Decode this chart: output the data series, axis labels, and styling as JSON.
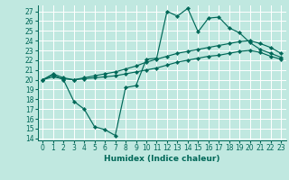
{
  "title": "",
  "xlabel": "Humidex (Indice chaleur)",
  "ylabel": "",
  "bg_color": "#c0e8e0",
  "grid_color": "#ffffff",
  "line_color": "#006858",
  "xlim": [
    -0.5,
    23.5
  ],
  "ylim": [
    13.8,
    27.6
  ],
  "xticks": [
    0,
    1,
    2,
    3,
    4,
    5,
    6,
    7,
    8,
    9,
    10,
    11,
    12,
    13,
    14,
    15,
    16,
    17,
    18,
    19,
    20,
    21,
    22,
    23
  ],
  "yticks": [
    14,
    15,
    16,
    17,
    18,
    19,
    20,
    21,
    22,
    23,
    24,
    25,
    26,
    27
  ],
  "line1_x": [
    0,
    1,
    2,
    3,
    4,
    5,
    6,
    7,
    8,
    9,
    10,
    11,
    12,
    13,
    14,
    15,
    16,
    17,
    18,
    19,
    20,
    21,
    22,
    23
  ],
  "line1_y": [
    20.0,
    20.5,
    20.0,
    17.8,
    17.0,
    15.2,
    14.9,
    14.3,
    19.2,
    19.4,
    22.1,
    22.2,
    27.0,
    26.5,
    27.3,
    24.9,
    26.3,
    26.4,
    25.3,
    24.8,
    23.8,
    23.1,
    22.7,
    22.3
  ],
  "line2_x": [
    0,
    1,
    2,
    3,
    4,
    5,
    6,
    7,
    8,
    9,
    10,
    11,
    12,
    13,
    14,
    15,
    16,
    17,
    18,
    19,
    20,
    21,
    22,
    23
  ],
  "line2_y": [
    20.0,
    20.6,
    20.2,
    20.0,
    20.2,
    20.4,
    20.6,
    20.8,
    21.1,
    21.4,
    21.8,
    22.1,
    22.4,
    22.7,
    22.9,
    23.1,
    23.3,
    23.5,
    23.7,
    23.9,
    24.0,
    23.7,
    23.3,
    22.7
  ],
  "line3_x": [
    0,
    1,
    2,
    3,
    4,
    5,
    6,
    7,
    8,
    9,
    10,
    11,
    12,
    13,
    14,
    15,
    16,
    17,
    18,
    19,
    20,
    21,
    22,
    23
  ],
  "line3_y": [
    20.0,
    20.3,
    20.1,
    20.0,
    20.1,
    20.2,
    20.3,
    20.4,
    20.6,
    20.8,
    21.0,
    21.2,
    21.5,
    21.8,
    22.0,
    22.2,
    22.4,
    22.5,
    22.7,
    22.9,
    23.0,
    22.8,
    22.4,
    22.1
  ],
  "tick_fontsize": 5.5,
  "xlabel_fontsize": 6.5
}
